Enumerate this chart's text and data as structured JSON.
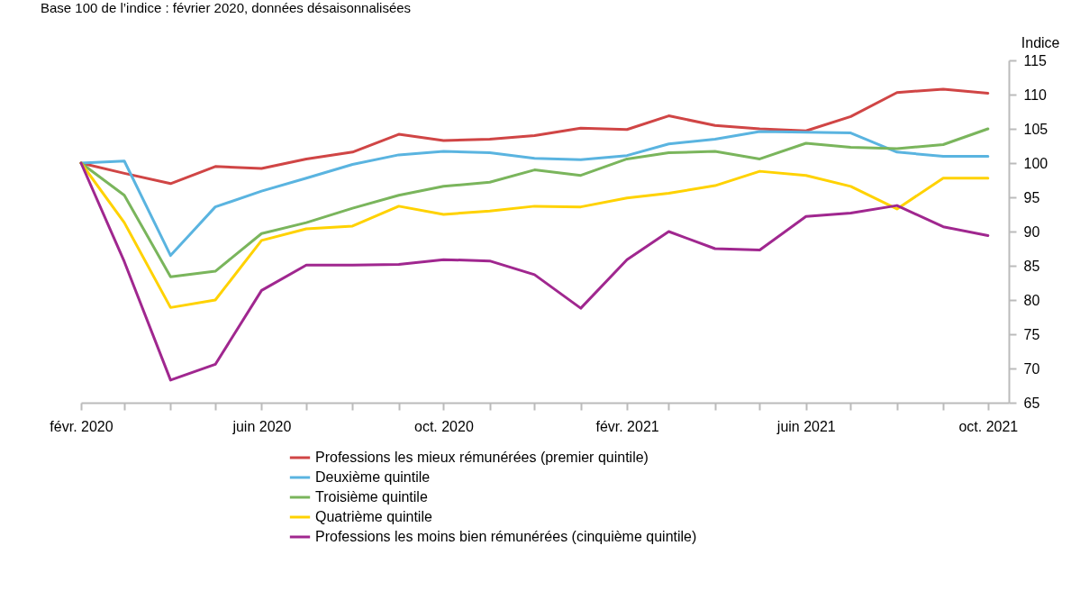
{
  "chart_data": {
    "type": "line",
    "subtitle": "Base 100 de l’indice : février 2020, données désaisonnalisées",
    "ylabel": "Indice",
    "x": [
      "2020-02",
      "2020-03",
      "2020-04",
      "2020-05",
      "2020-06",
      "2020-07",
      "2020-08",
      "2020-09",
      "2020-10",
      "2020-11",
      "2020-12",
      "2021-01",
      "2021-02",
      "2021-03",
      "2021-04",
      "2021-05",
      "2021-06",
      "2021-07",
      "2021-08",
      "2021-09",
      "2021-10"
    ],
    "xlim": [
      "2020-02",
      "2021-10-15"
    ],
    "xticks": [
      {
        "value": "2020-02",
        "label": "févr. 2020"
      },
      {
        "value": "2020-03",
        "label": null
      },
      {
        "value": "2020-04",
        "label": null
      },
      {
        "value": "2020-05",
        "label": null
      },
      {
        "value": "2020-06",
        "label": "juin 2020"
      },
      {
        "value": "2020-07",
        "label": null
      },
      {
        "value": "2020-08",
        "label": null
      },
      {
        "value": "2020-09",
        "label": null
      },
      {
        "value": "2020-10",
        "label": "oct. 2020"
      },
      {
        "value": "2020-11",
        "label": null
      },
      {
        "value": "2020-12",
        "label": null
      },
      {
        "value": "2021-01",
        "label": null
      },
      {
        "value": "2021-02",
        "label": "févr. 2021"
      },
      {
        "value": "2021-03",
        "label": null
      },
      {
        "value": "2021-04",
        "label": null
      },
      {
        "value": "2021-05",
        "label": null
      },
      {
        "value": "2021-06",
        "label": "juin 2021"
      },
      {
        "value": "2021-07",
        "label": null
      },
      {
        "value": "2021-08",
        "label": null
      },
      {
        "value": "2021-09",
        "label": null
      },
      {
        "value": "2021-10",
        "label": "oct. 2021"
      }
    ],
    "ylim": [
      65,
      115
    ],
    "yticks": [
      65,
      70,
      75,
      80,
      85,
      90,
      95,
      100,
      105,
      110,
      115
    ],
    "legend": "bottom",
    "grid": false,
    "marker": "none",
    "line_style": "solid",
    "series": [
      {
        "name": "Professions les mieux rémunérées (premier quintile)",
        "color": "#d04545",
        "values": [
          100,
          98.5,
          97.0,
          99.5,
          99.2,
          100.6,
          101.6,
          104.2,
          103.3,
          103.5,
          104.0,
          105.1,
          104.9,
          106.9,
          105.5,
          105.0,
          104.7,
          106.8,
          110.3,
          110.8,
          110.2
        ]
      },
      {
        "name": "Deuxième quintile",
        "color": "#5ab4e0",
        "values": [
          100,
          100.3,
          86.5,
          93.6,
          95.9,
          97.8,
          99.8,
          101.2,
          101.7,
          101.5,
          100.7,
          100.5,
          101.1,
          102.8,
          103.5,
          104.6,
          104.5,
          104.4,
          101.6,
          101.0,
          101.0
        ]
      },
      {
        "name": "Troisième quintile",
        "color": "#7ab55c",
        "values": [
          100,
          95.3,
          83.4,
          84.2,
          89.7,
          91.3,
          93.4,
          95.3,
          96.6,
          97.2,
          99.0,
          98.2,
          100.6,
          101.5,
          101.7,
          100.6,
          102.9,
          102.3,
          102.1,
          102.7,
          105.0
        ]
      },
      {
        "name": "Quatrième quintile",
        "color": "#ffd200",
        "values": [
          100,
          91.3,
          78.9,
          80.0,
          88.7,
          90.4,
          90.8,
          93.7,
          92.5,
          93.0,
          93.7,
          93.6,
          94.9,
          95.6,
          96.7,
          98.8,
          98.2,
          96.6,
          93.3,
          97.8,
          97.8
        ]
      },
      {
        "name": "Professions les moins bien rémunérées (cinquième quintile)",
        "color": "#a0278f",
        "values": [
          100,
          85.6,
          68.3,
          70.6,
          81.4,
          85.1,
          85.1,
          85.2,
          85.9,
          85.7,
          83.7,
          78.8,
          85.9,
          90.0,
          87.5,
          87.3,
          92.2,
          92.7,
          93.8,
          90.7,
          89.4
        ]
      }
    ]
  }
}
